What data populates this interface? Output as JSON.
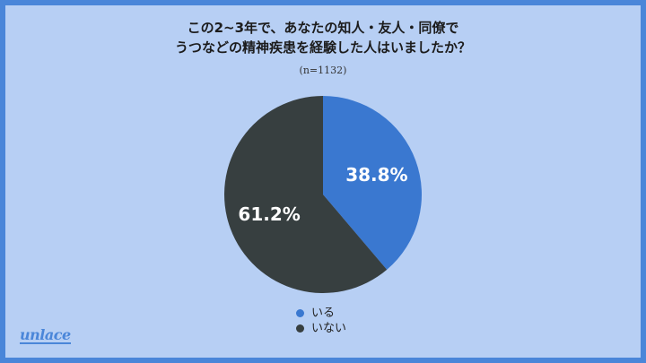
{
  "title_lines": [
    "この2~3年で、あなたの知人・友人・同僚で",
    "うつなどの精神疾患を経験した人はいましたか？"
  ],
  "sample_size": "(n=1132)",
  "brand_logo": "unlace",
  "chart_data": {
    "type": "pie",
    "categories": [
      "いる",
      "いない"
    ],
    "values": [
      38.8,
      61.2
    ],
    "labels": [
      "38.8%",
      "61.2%"
    ],
    "colors": [
      "#3a78d0",
      "#373f40"
    ],
    "start_angle": "12 o'clock",
    "direction": "clockwise",
    "legend_position": "bottom-center"
  }
}
